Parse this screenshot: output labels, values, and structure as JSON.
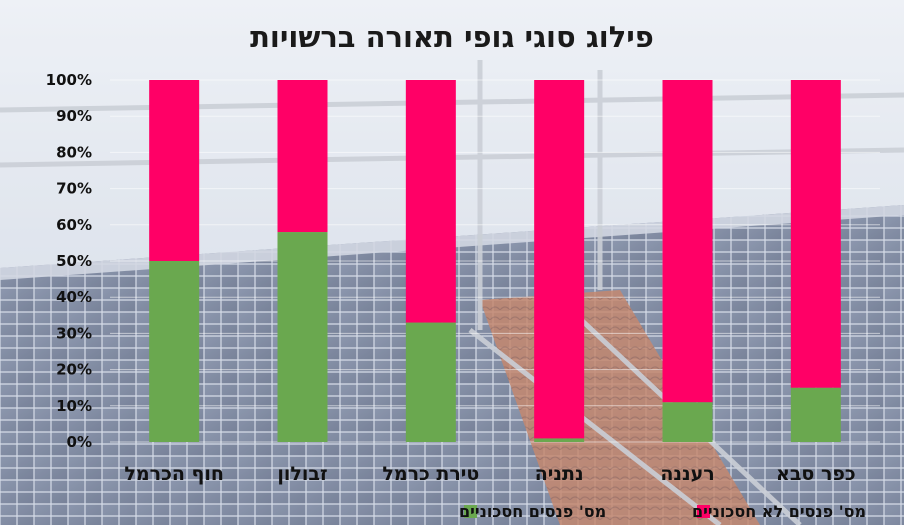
{
  "chart_data": {
    "type": "bar",
    "stacked": "percent",
    "title": "פילוג סוגי גופי תאורה ברשויות",
    "categories": [
      "חוף הכרמל",
      "זבולון",
      "טירת כרמל",
      "נתניה",
      "רעננה",
      "כפר סבא"
    ],
    "series": [
      {
        "name": "מס' פנסים חסכוניים",
        "color": "#6aa84f",
        "values": [
          50,
          58,
          33,
          1,
          11,
          15
        ]
      },
      {
        "name": "מס' פנסים לא חסכוניים",
        "color": "#ff0066",
        "values": [
          50,
          42,
          67,
          99,
          89,
          85
        ]
      }
    ],
    "y_ticks": [
      "0%",
      "10%",
      "20%",
      "30%",
      "40%",
      "50%",
      "60%",
      "70%",
      "80%",
      "90%",
      "100%"
    ],
    "ylim": [
      0,
      100
    ],
    "grid": true,
    "legend_position": "bottom",
    "background": "solar panels photo"
  }
}
